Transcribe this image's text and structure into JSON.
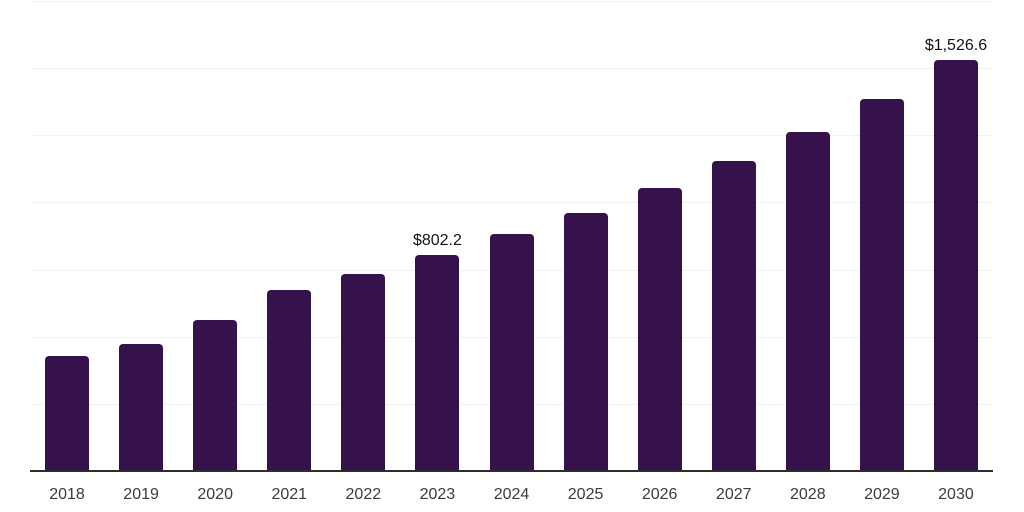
{
  "chart_data": {
    "type": "bar",
    "title": "",
    "xlabel": "",
    "ylabel": "",
    "categories": [
      "2018",
      "2019",
      "2020",
      "2021",
      "2022",
      "2023",
      "2024",
      "2025",
      "2026",
      "2027",
      "2028",
      "2029",
      "2030"
    ],
    "values": [
      425,
      470,
      558,
      672,
      730,
      802.2,
      878,
      957,
      1049,
      1150,
      1260,
      1383,
      1526.6
    ],
    "value_labels": {
      "2023": "$802.2",
      "2030": "$1,526.6"
    },
    "ylim": [
      0,
      1750
    ],
    "gridline_step": 250,
    "grid": true,
    "legend": "none",
    "colors": {
      "bar": "#36124d",
      "gridline": "#f1f1f3",
      "axis": "#2d2d2d",
      "tick_label": "#3b3b3b",
      "value_label": "#141414",
      "background": "#ffffff"
    }
  }
}
